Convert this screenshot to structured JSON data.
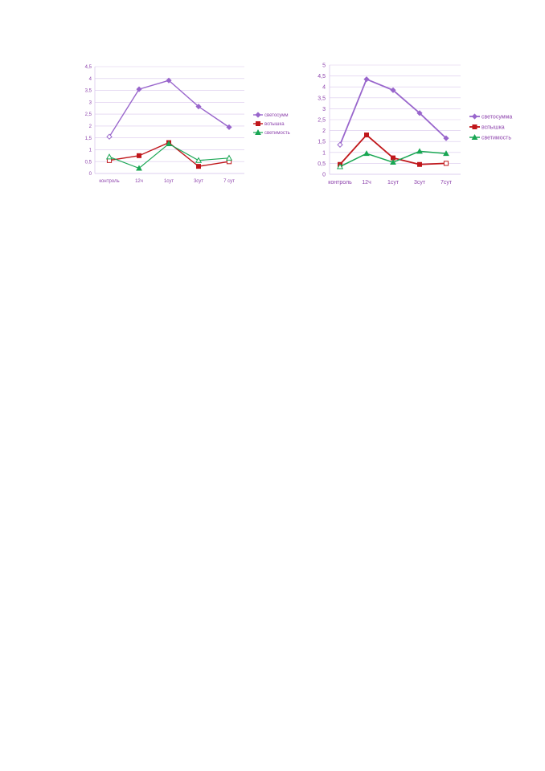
{
  "colors": {
    "svetosumma": "#9966cc",
    "vspyshka": "#c0171b",
    "svetimost": "#19a653",
    "axis_text": "#8e44ad",
    "grid": "#d9c8ec"
  },
  "chart_data": [
    {
      "type": "line",
      "categories": [
        "контроль",
        "12ч",
        "1сут",
        "3сут",
        "7 сут"
      ],
      "ylim": [
        0,
        4.5
      ],
      "y_ticks": [
        "0",
        "0,5",
        "1",
        "1,5",
        "2",
        "2,5",
        "3",
        "3,5",
        "4",
        "4,5"
      ],
      "grid": true,
      "legend_position": "right",
      "series": [
        {
          "name": "светосумм",
          "values": [
            1.55,
            3.55,
            3.92,
            2.82,
            1.95
          ]
        },
        {
          "name": "вспышка",
          "values": [
            0.55,
            0.75,
            1.3,
            0.3,
            0.5
          ]
        },
        {
          "name": "светимость",
          "values": [
            0.7,
            0.22,
            1.25,
            0.55,
            0.65
          ]
        }
      ]
    },
    {
      "type": "line",
      "categories": [
        "контроль",
        "12ч",
        "1сут",
        "3сут",
        "7сут"
      ],
      "ylim": [
        0,
        5
      ],
      "y_ticks": [
        "0",
        "0,5",
        "1",
        "1,5",
        "2",
        "2,5",
        "3",
        "3,5",
        "4",
        "4,5",
        "5"
      ],
      "grid": true,
      "legend_position": "right",
      "series": [
        {
          "name": "светосумма",
          "values": [
            1.35,
            4.35,
            3.85,
            2.8,
            1.65
          ]
        },
        {
          "name": "вспышка",
          "values": [
            0.45,
            1.8,
            0.75,
            0.45,
            0.5
          ]
        },
        {
          "name": "светимость",
          "values": [
            0.35,
            0.95,
            0.55,
            1.05,
            0.95
          ]
        }
      ]
    }
  ]
}
